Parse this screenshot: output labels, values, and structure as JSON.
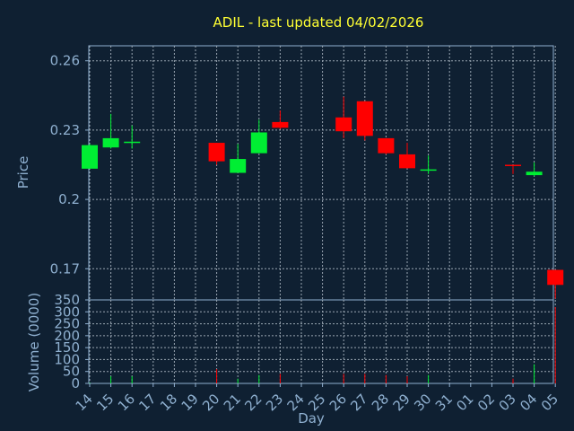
{
  "chart_data": {
    "type": "candlestick",
    "title": "ADIL - last updated 04/02/2026",
    "xlabel": "Day",
    "price_panel": {
      "ylabel": "Price",
      "yticks": [
        "0.26",
        "0.23",
        "0.2",
        "0.17"
      ],
      "ylim": [
        0.1565,
        0.2665
      ]
    },
    "volume_panel": {
      "ylabel": "Volume (0000)",
      "yticks": [
        "350",
        "300",
        "250",
        "200",
        "150",
        "100",
        "50",
        "0"
      ],
      "ylim": [
        0,
        350
      ]
    },
    "x_ticks": [
      "14",
      "15",
      "16",
      "17",
      "18",
      "19",
      "20",
      "21",
      "22",
      "23",
      "24",
      "25",
      "26",
      "27",
      "28",
      "29",
      "30",
      "31",
      "01",
      "02",
      "03",
      "04",
      "05"
    ],
    "colors": {
      "up": "#00ee33",
      "down": "#ff0000",
      "background": "#0f2032",
      "title": "#ffff33",
      "axis": "#8fb0d0"
    },
    "candles": [
      {
        "day": "14",
        "i": 0,
        "open": 0.2133,
        "high": 0.224,
        "low": 0.2133,
        "close": 0.2235,
        "volume": 3
      },
      {
        "day": "15",
        "i": 1,
        "open": 0.2225,
        "high": 0.237,
        "low": 0.222,
        "close": 0.2265,
        "volume": 30
      },
      {
        "day": "16",
        "i": 2,
        "open": 0.2245,
        "high": 0.232,
        "low": 0.222,
        "close": 0.225,
        "volume": 30
      },
      {
        "day": "20",
        "i": 6,
        "open": 0.2245,
        "high": 0.2245,
        "low": 0.215,
        "close": 0.2165,
        "volume": 60
      },
      {
        "day": "21",
        "i": 7,
        "open": 0.2115,
        "high": 0.224,
        "low": 0.2115,
        "close": 0.2175,
        "volume": 20
      },
      {
        "day": "22",
        "i": 8,
        "open": 0.22,
        "high": 0.2345,
        "low": 0.22,
        "close": 0.229,
        "volume": 35
      },
      {
        "day": "23",
        "i": 9,
        "open": 0.2335,
        "high": 0.2385,
        "low": 0.2305,
        "close": 0.231,
        "volume": 40
      },
      {
        "day": "26",
        "i": 12,
        "open": 0.2355,
        "high": 0.2445,
        "low": 0.2265,
        "close": 0.2295,
        "volume": 40
      },
      {
        "day": "27",
        "i": 13,
        "open": 0.2425,
        "high": 0.2425,
        "low": 0.2255,
        "close": 0.2275,
        "volume": 40
      },
      {
        "day": "28",
        "i": 14,
        "open": 0.2265,
        "high": 0.2265,
        "low": 0.2195,
        "close": 0.22,
        "volume": 35
      },
      {
        "day": "29",
        "i": 15,
        "open": 0.2195,
        "high": 0.2245,
        "low": 0.2135,
        "close": 0.2135,
        "volume": 30
      },
      {
        "day": "30",
        "i": 16,
        "open": 0.213,
        "high": 0.219,
        "low": 0.211,
        "close": 0.213,
        "volume": 35
      },
      {
        "day": "02",
        "i": 20,
        "open": 0.215,
        "high": 0.215,
        "low": 0.211,
        "close": 0.2145,
        "volume": 20
      },
      {
        "day": "03",
        "i": 21,
        "open": 0.2105,
        "high": 0.216,
        "low": 0.21,
        "close": 0.212,
        "volume": 80
      },
      {
        "day": "04",
        "i": 22,
        "open": 0.1695,
        "high": 0.1695,
        "low": 0.157,
        "close": 0.163,
        "volume": 320
      }
    ]
  }
}
